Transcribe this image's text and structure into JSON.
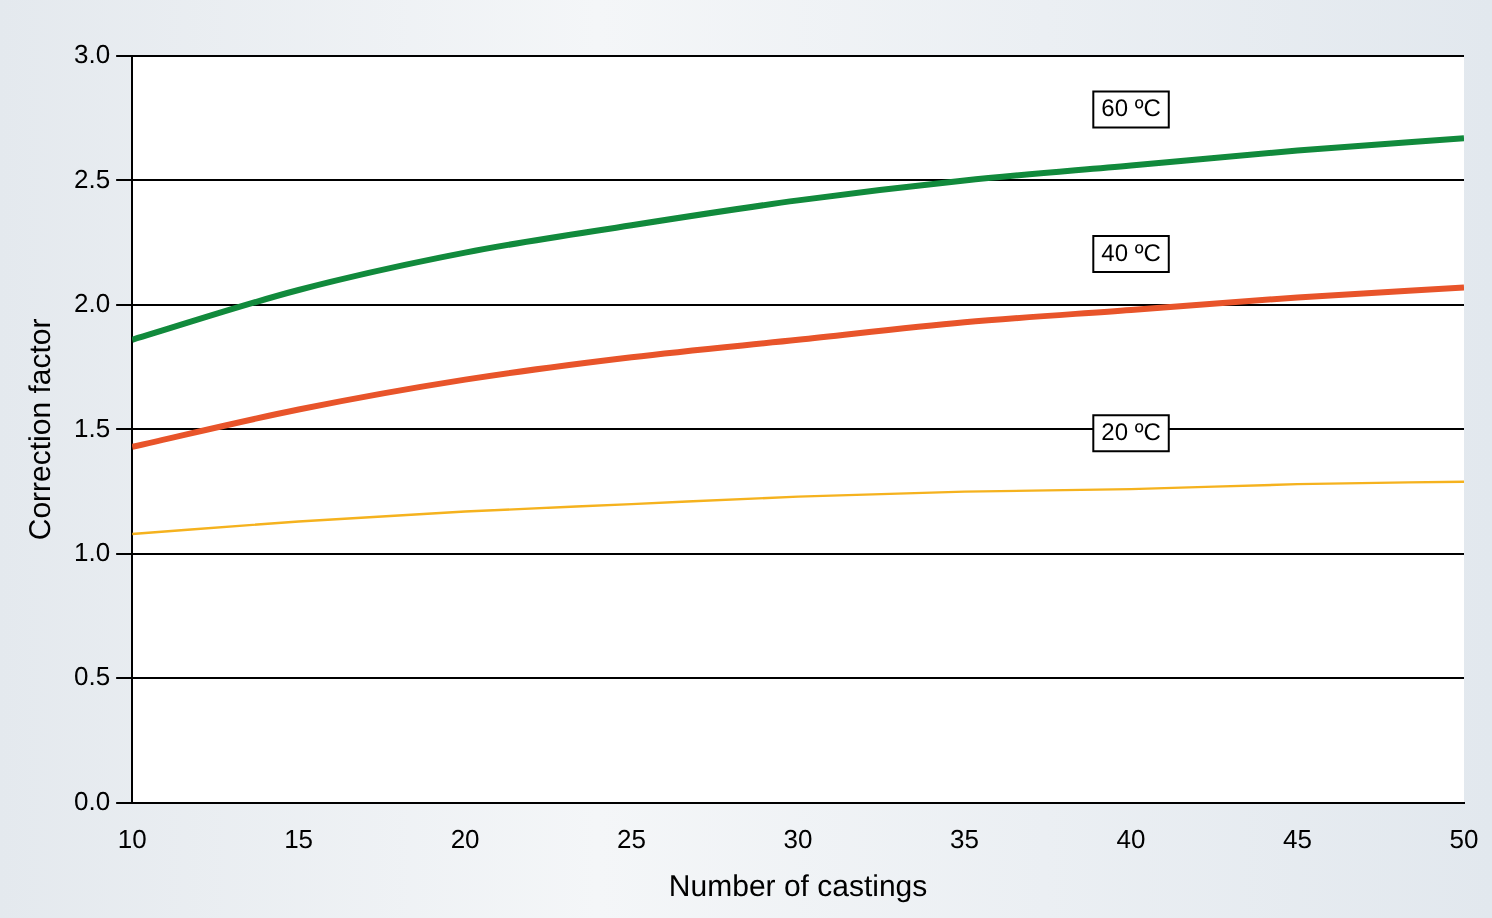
{
  "chart_data": {
    "type": "line",
    "xlabel": "Number of castings",
    "ylabel": "Correction factor",
    "x": [
      10,
      15,
      20,
      25,
      30,
      35,
      40,
      45,
      50
    ],
    "series": [
      {
        "name": "60 ºC",
        "color": "#118a3c",
        "values": [
          1.86,
          2.06,
          2.21,
          2.32,
          2.42,
          2.5,
          2.56,
          2.62,
          2.67
        ]
      },
      {
        "name": "40 ºC",
        "color": "#e8542a",
        "values": [
          1.43,
          1.58,
          1.7,
          1.79,
          1.86,
          1.93,
          1.98,
          2.03,
          2.07
        ]
      },
      {
        "name": "20 ºC",
        "color": "#f5b21e",
        "values": [
          1.08,
          1.13,
          1.17,
          1.2,
          1.23,
          1.25,
          1.26,
          1.28,
          1.29
        ]
      }
    ],
    "xlim": [
      10,
      50
    ],
    "xticks": [
      10,
      15,
      20,
      25,
      30,
      35,
      40,
      45,
      50
    ],
    "ylim": [
      0,
      3
    ],
    "yticks": [
      {
        "value": 0,
        "label": "0.0"
      },
      {
        "value": 0.5,
        "label": "0.5"
      },
      {
        "value": 1,
        "label": "1.0"
      },
      {
        "value": 1.5,
        "label": "1.5"
      },
      {
        "value": 2,
        "label": "2.0"
      },
      {
        "value": 2.5,
        "label": "2.5"
      },
      {
        "value": 3,
        "label": "3.0"
      }
    ],
    "grid": "y",
    "legend": false,
    "marker": "none",
    "line_style": "solid"
  }
}
